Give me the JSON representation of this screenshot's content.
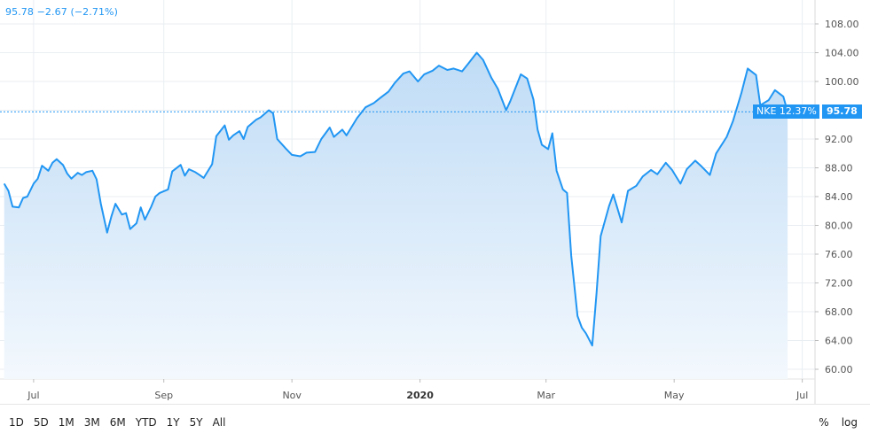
{
  "headline": {
    "last": "95.78",
    "change": "−2.67",
    "change_pct": "(−2.71%)"
  },
  "colors": {
    "line": "#2196f3",
    "fill_top": "#bfdcf6",
    "fill_bottom": "#f3f8fd",
    "grid": "#e9eef2",
    "badge": "#2196f3"
  },
  "price_label": {
    "symbol_text": "NKE 12.37%",
    "value": "95.78"
  },
  "range_buttons": [
    "1D",
    "5D",
    "1M",
    "3M",
    "6M",
    "YTD",
    "1Y",
    "5Y",
    "All"
  ],
  "scale_toggles": [
    "%",
    "log"
  ],
  "chart_data": {
    "type": "line",
    "title": "",
    "xlabel": "",
    "ylabel": "",
    "ylim": [
      58.5,
      110
    ],
    "y_ticks": [
      "108.00",
      "104.00",
      "100.00",
      "96.00",
      "92.00",
      "88.00",
      "84.00",
      "80.00",
      "76.00",
      "72.00",
      "68.00",
      "64.00",
      "60.00"
    ],
    "x_ticks": [
      {
        "label": "Jul",
        "date": "2019-07-01",
        "bold": false
      },
      {
        "label": "Sep",
        "date": "2019-09-01",
        "bold": false
      },
      {
        "label": "Nov",
        "date": "2019-11-01",
        "bold": false
      },
      {
        "label": "2020",
        "date": "2020-01-01",
        "bold": true
      },
      {
        "label": "Mar",
        "date": "2020-03-01",
        "bold": false
      },
      {
        "label": "May",
        "date": "2020-05-01",
        "bold": false
      },
      {
        "label": "Jul",
        "date": "2020-07-01",
        "bold": false
      }
    ],
    "grid": true,
    "series": [
      {
        "name": "NKE",
        "points": [
          [
            "2019-06-17",
            85.8
          ],
          [
            "2019-06-19",
            84.8
          ],
          [
            "2019-06-21",
            82.6
          ],
          [
            "2019-06-24",
            82.5
          ],
          [
            "2019-06-26",
            83.8
          ],
          [
            "2019-06-28",
            84.0
          ],
          [
            "2019-07-01",
            85.8
          ],
          [
            "2019-07-03",
            86.5
          ],
          [
            "2019-07-05",
            88.3
          ],
          [
            "2019-07-08",
            87.6
          ],
          [
            "2019-07-10",
            88.7
          ],
          [
            "2019-07-12",
            89.2
          ],
          [
            "2019-07-15",
            88.4
          ],
          [
            "2019-07-17",
            87.2
          ],
          [
            "2019-07-19",
            86.5
          ],
          [
            "2019-07-22",
            87.3
          ],
          [
            "2019-07-24",
            87.0
          ],
          [
            "2019-07-26",
            87.4
          ],
          [
            "2019-07-29",
            87.6
          ],
          [
            "2019-07-31",
            86.4
          ],
          [
            "2019-08-02",
            83.0
          ],
          [
            "2019-08-05",
            79.0
          ],
          [
            "2019-08-07",
            81.2
          ],
          [
            "2019-08-09",
            83.0
          ],
          [
            "2019-08-12",
            81.5
          ],
          [
            "2019-08-14",
            81.7
          ],
          [
            "2019-08-16",
            79.5
          ],
          [
            "2019-08-19",
            80.3
          ],
          [
            "2019-08-21",
            82.5
          ],
          [
            "2019-08-23",
            80.8
          ],
          [
            "2019-08-26",
            82.6
          ],
          [
            "2019-08-28",
            84.0
          ],
          [
            "2019-08-30",
            84.5
          ],
          [
            "2019-09-03",
            85.0
          ],
          [
            "2019-09-05",
            87.5
          ],
          [
            "2019-09-09",
            88.4
          ],
          [
            "2019-09-11",
            86.9
          ],
          [
            "2019-09-13",
            87.8
          ],
          [
            "2019-09-16",
            87.4
          ],
          [
            "2019-09-18",
            87.0
          ],
          [
            "2019-09-20",
            86.6
          ],
          [
            "2019-09-24",
            88.5
          ],
          [
            "2019-09-26",
            92.4
          ],
          [
            "2019-09-30",
            93.9
          ],
          [
            "2019-10-02",
            91.9
          ],
          [
            "2019-10-04",
            92.5
          ],
          [
            "2019-10-07",
            93.1
          ],
          [
            "2019-10-09",
            92.0
          ],
          [
            "2019-10-11",
            93.7
          ],
          [
            "2019-10-15",
            94.7
          ],
          [
            "2019-10-17",
            95.0
          ],
          [
            "2019-10-21",
            96.0
          ],
          [
            "2019-10-23",
            95.6
          ],
          [
            "2019-10-25",
            92.0
          ],
          [
            "2019-10-29",
            90.7
          ],
          [
            "2019-11-01",
            89.8
          ],
          [
            "2019-11-05",
            89.6
          ],
          [
            "2019-11-08",
            90.1
          ],
          [
            "2019-11-12",
            90.2
          ],
          [
            "2019-11-15",
            92.0
          ],
          [
            "2019-11-19",
            93.6
          ],
          [
            "2019-11-21",
            92.3
          ],
          [
            "2019-11-25",
            93.3
          ],
          [
            "2019-11-27",
            92.5
          ],
          [
            "2019-12-02",
            94.9
          ],
          [
            "2019-12-06",
            96.4
          ],
          [
            "2019-12-10",
            97.0
          ],
          [
            "2019-12-13",
            97.7
          ],
          [
            "2019-12-17",
            98.6
          ],
          [
            "2019-12-20",
            99.8
          ],
          [
            "2019-12-24",
            101.1
          ],
          [
            "2019-12-27",
            101.4
          ],
          [
            "2019-12-31",
            100.0
          ],
          [
            "2020-01-03",
            101.0
          ],
          [
            "2020-01-07",
            101.5
          ],
          [
            "2020-01-10",
            102.2
          ],
          [
            "2020-01-14",
            101.6
          ],
          [
            "2020-01-17",
            101.8
          ],
          [
            "2020-01-21",
            101.4
          ],
          [
            "2020-01-24",
            102.5
          ],
          [
            "2020-01-28",
            104.0
          ],
          [
            "2020-01-31",
            103.0
          ],
          [
            "2020-02-04",
            100.5
          ],
          [
            "2020-02-07",
            99.0
          ],
          [
            "2020-02-11",
            96.0
          ],
          [
            "2020-02-13",
            97.3
          ],
          [
            "2020-02-18",
            101.0
          ],
          [
            "2020-02-21",
            100.4
          ],
          [
            "2020-02-24",
            97.5
          ],
          [
            "2020-02-26",
            93.3
          ],
          [
            "2020-02-28",
            91.2
          ],
          [
            "2020-03-02",
            90.6
          ],
          [
            "2020-03-04",
            92.8
          ],
          [
            "2020-03-06",
            87.6
          ],
          [
            "2020-03-09",
            85.0
          ],
          [
            "2020-03-11",
            84.5
          ],
          [
            "2020-03-13",
            75.8
          ],
          [
            "2020-03-16",
            67.4
          ],
          [
            "2020-03-18",
            65.8
          ],
          [
            "2020-03-20",
            65.0
          ],
          [
            "2020-03-23",
            63.3
          ],
          [
            "2020-03-25",
            70.5
          ],
          [
            "2020-03-27",
            78.5
          ],
          [
            "2020-03-31",
            82.7
          ],
          [
            "2020-04-02",
            84.3
          ],
          [
            "2020-04-06",
            80.4
          ],
          [
            "2020-04-09",
            84.8
          ],
          [
            "2020-04-13",
            85.5
          ],
          [
            "2020-04-16",
            86.8
          ],
          [
            "2020-04-20",
            87.7
          ],
          [
            "2020-04-23",
            87.1
          ],
          [
            "2020-04-27",
            88.7
          ],
          [
            "2020-04-30",
            87.7
          ],
          [
            "2020-05-04",
            85.8
          ],
          [
            "2020-05-07",
            87.8
          ],
          [
            "2020-05-11",
            89.0
          ],
          [
            "2020-05-14",
            88.2
          ],
          [
            "2020-05-18",
            87.0
          ],
          [
            "2020-05-21",
            90.0
          ],
          [
            "2020-05-26",
            92.3
          ],
          [
            "2020-05-29",
            94.5
          ],
          [
            "2020-06-02",
            98.4
          ],
          [
            "2020-06-05",
            101.8
          ],
          [
            "2020-06-09",
            100.9
          ],
          [
            "2020-06-11",
            96.7
          ],
          [
            "2020-06-15",
            97.4
          ],
          [
            "2020-06-18",
            98.8
          ],
          [
            "2020-06-22",
            97.9
          ],
          [
            "2020-06-24",
            95.78
          ]
        ]
      }
    ]
  }
}
